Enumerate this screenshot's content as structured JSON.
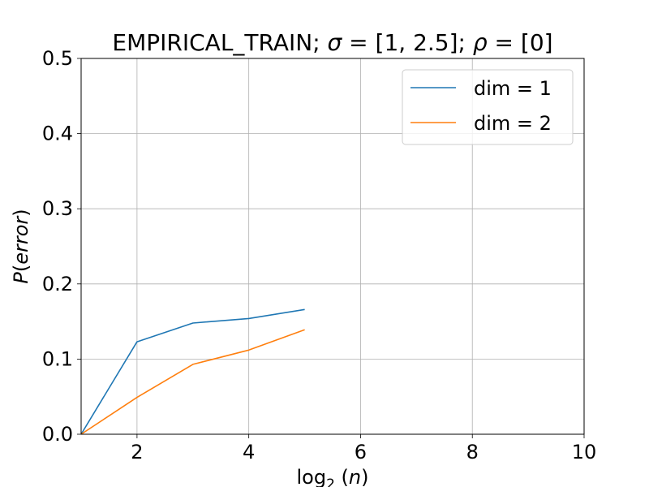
{
  "chart_data": {
    "type": "line",
    "title_parts": [
      "EMPIRICAL_TRAIN;  ",
      "σ",
      " = [1, 2.5];  ",
      "ρ",
      " = [0]"
    ],
    "xlabel_parts": [
      "log",
      "2",
      " (",
      "n",
      ")"
    ],
    "ylabel_parts": [
      "P",
      "(",
      "error",
      ")"
    ],
    "xlim": [
      1,
      10
    ],
    "ylim": [
      0,
      0.5
    ],
    "xticks": [
      2,
      4,
      6,
      8,
      10
    ],
    "xtick_labels": [
      "2",
      "4",
      "6",
      "8",
      "10"
    ],
    "yticks": [
      0,
      0.1,
      0.2,
      0.3,
      0.4,
      0.5
    ],
    "ytick_labels": [
      "0.0",
      "0.1",
      "0.2",
      "0.3",
      "0.4",
      "0.5"
    ],
    "grid": true,
    "legend_position": "top-right",
    "series": [
      {
        "name": "dim = 1",
        "color": "#1f77b4",
        "x": [
          1,
          2,
          3,
          4,
          5
        ],
        "y": [
          0.0,
          0.123,
          0.148,
          0.154,
          0.166
        ]
      },
      {
        "name": "dim = 2",
        "color": "#ff7f0e",
        "x": [
          1,
          2,
          3,
          4,
          5
        ],
        "y": [
          0.0,
          0.049,
          0.093,
          0.112,
          0.139
        ]
      }
    ]
  }
}
